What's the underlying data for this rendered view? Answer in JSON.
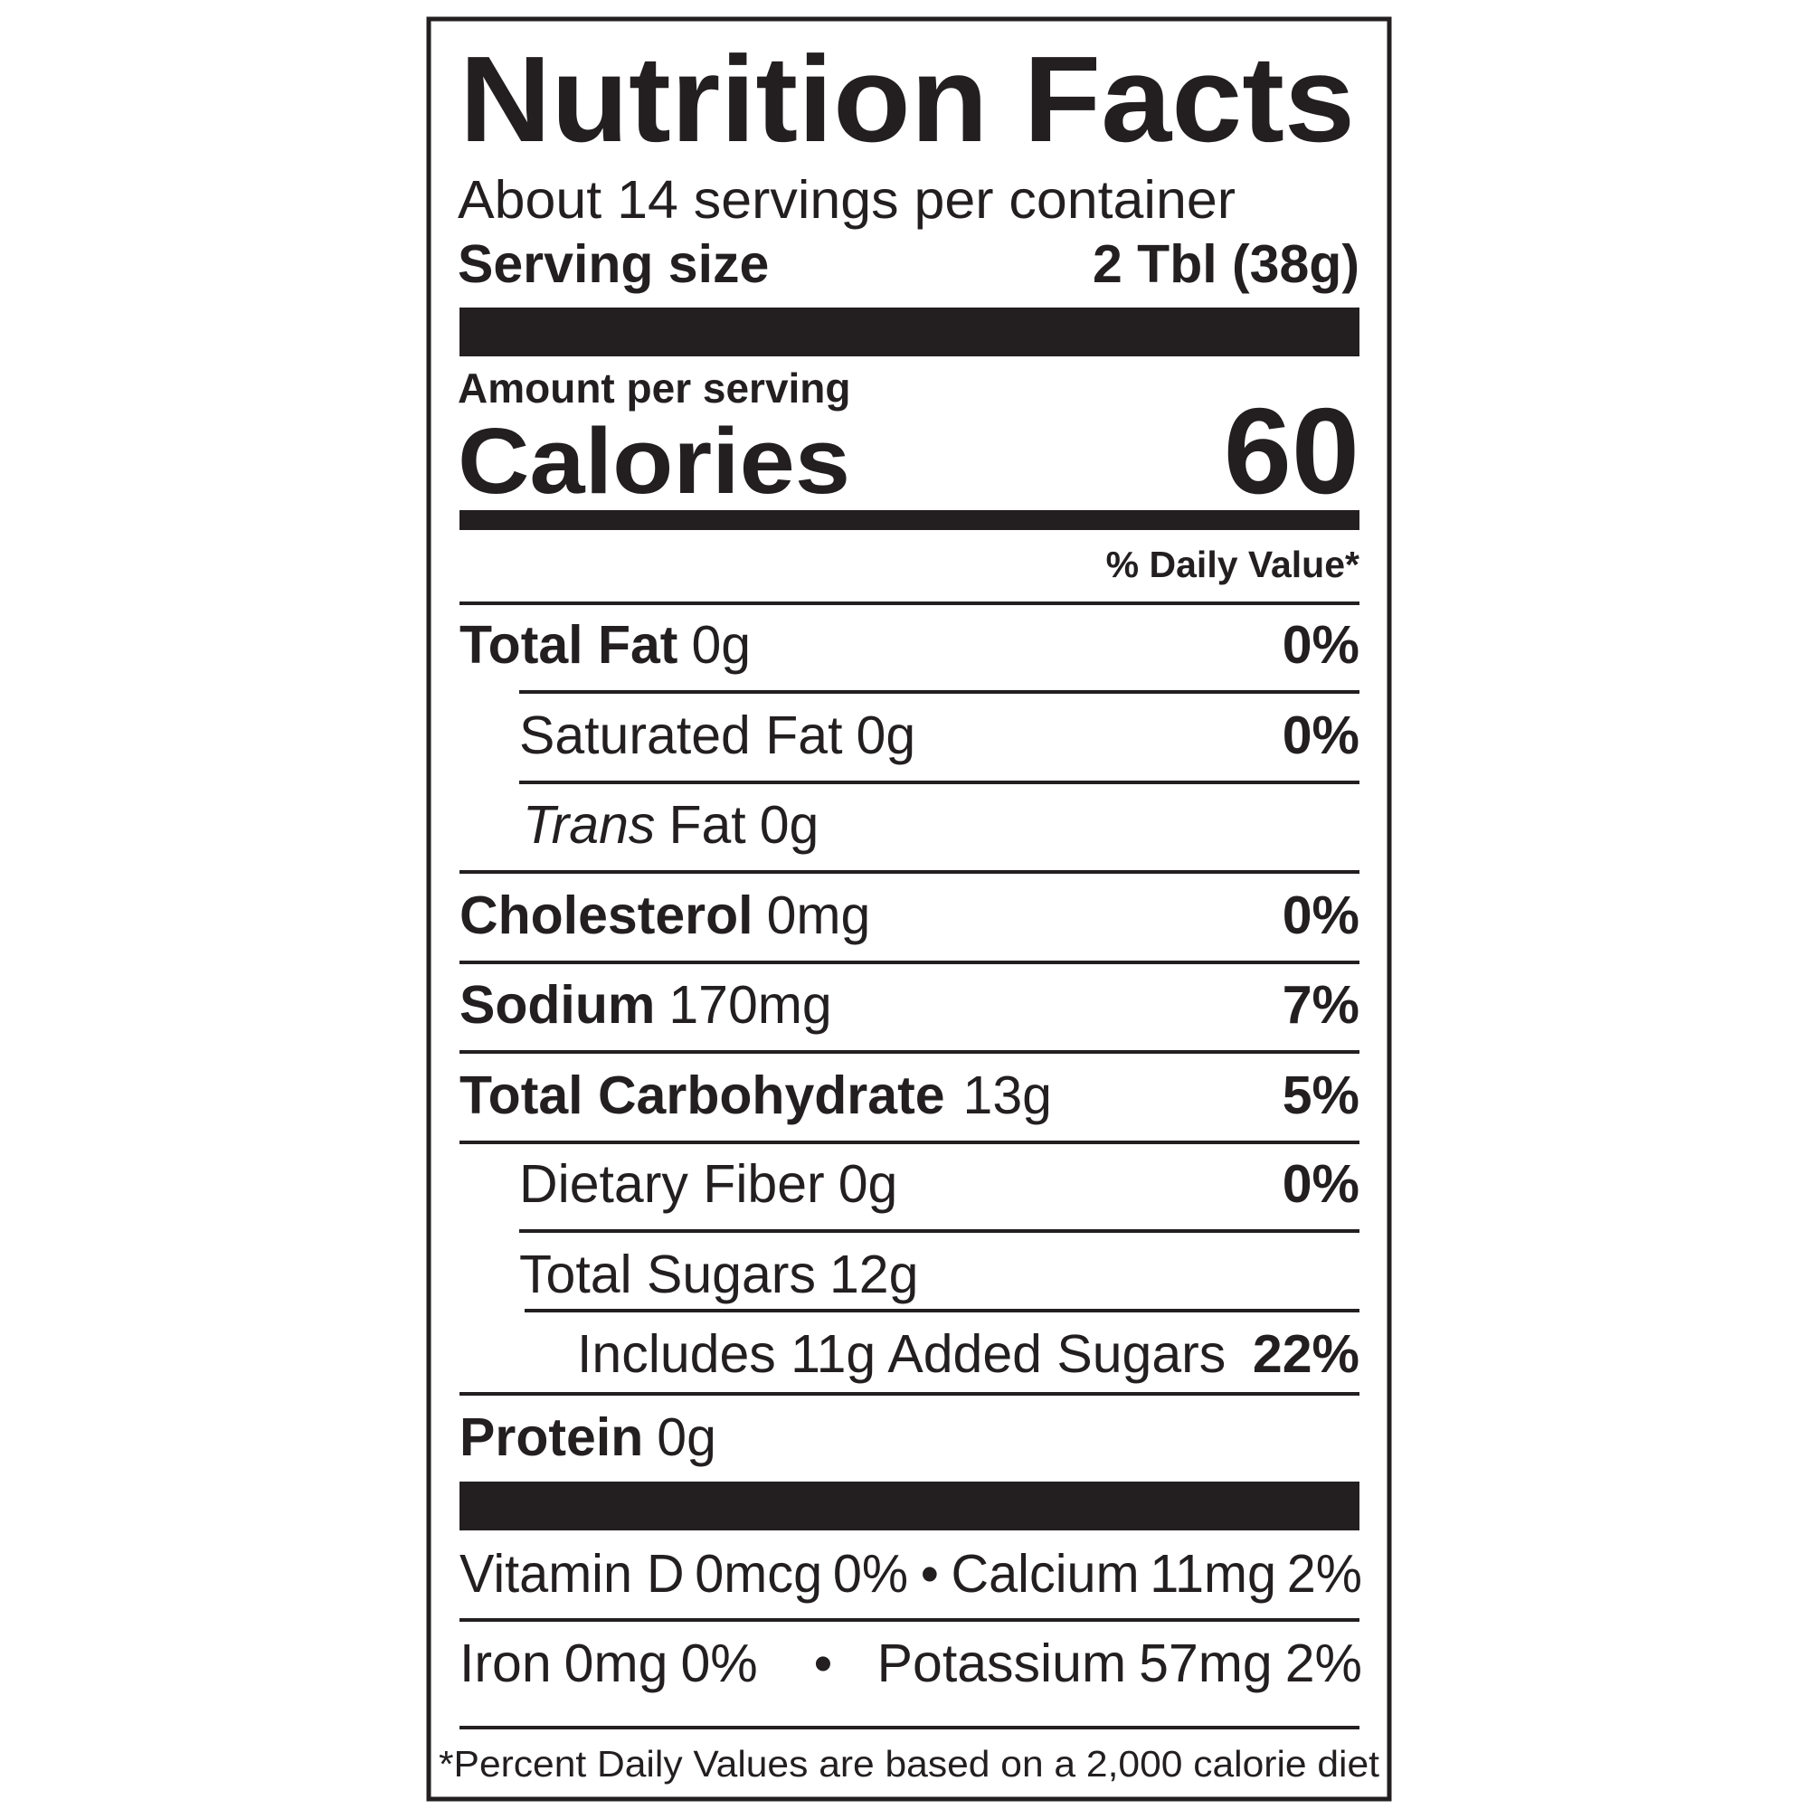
{
  "header": {
    "title": "Nutrition Facts",
    "servings": "About 14 servings per container",
    "serving_size_label": "Serving size",
    "serving_size": "2 Tbl (38g)"
  },
  "calories": {
    "label_small": "Amount per serving",
    "label": "Calories",
    "value": "60"
  },
  "dv_header": "% Daily Value*",
  "nutrients": [
    {
      "label": "Total Fat",
      "amount": "0g",
      "dv": "0%"
    },
    {
      "label": "Saturated Fat",
      "amount": "0g",
      "dv": "0%"
    },
    {
      "label_italic": "Trans",
      "label": "Fat",
      "amount": "0g"
    },
    {
      "label": "Cholesterol",
      "amount": "0mg",
      "dv": "0%"
    },
    {
      "label": "Sodium",
      "amount": "170mg",
      "dv": "7%"
    },
    {
      "label": "Total Carbohydrate",
      "amount": "13g",
      "dv": "5%"
    },
    {
      "label": "Dietary Fiber",
      "amount": "0g",
      "dv": "0%"
    },
    {
      "label": "Total Sugars",
      "amount": "12g"
    },
    {
      "label": "Includes 11g Added Sugars",
      "dv": "22%"
    },
    {
      "label": "Protein",
      "amount": "0g"
    }
  ],
  "micronutrients": [
    {
      "name": "Vitamin D",
      "amount": "0mcg",
      "dv": "0%"
    },
    {
      "name": "Calcium",
      "amount": "11mg",
      "dv": "2%"
    },
    {
      "name": "Iron",
      "amount": "0mg",
      "dv": "0%"
    },
    {
      "name": "Potassium",
      "amount": "57mg",
      "dv": "2%"
    }
  ],
  "separator": "•",
  "footnote": "*Percent Daily Values are based on a 2,000 calorie diet"
}
